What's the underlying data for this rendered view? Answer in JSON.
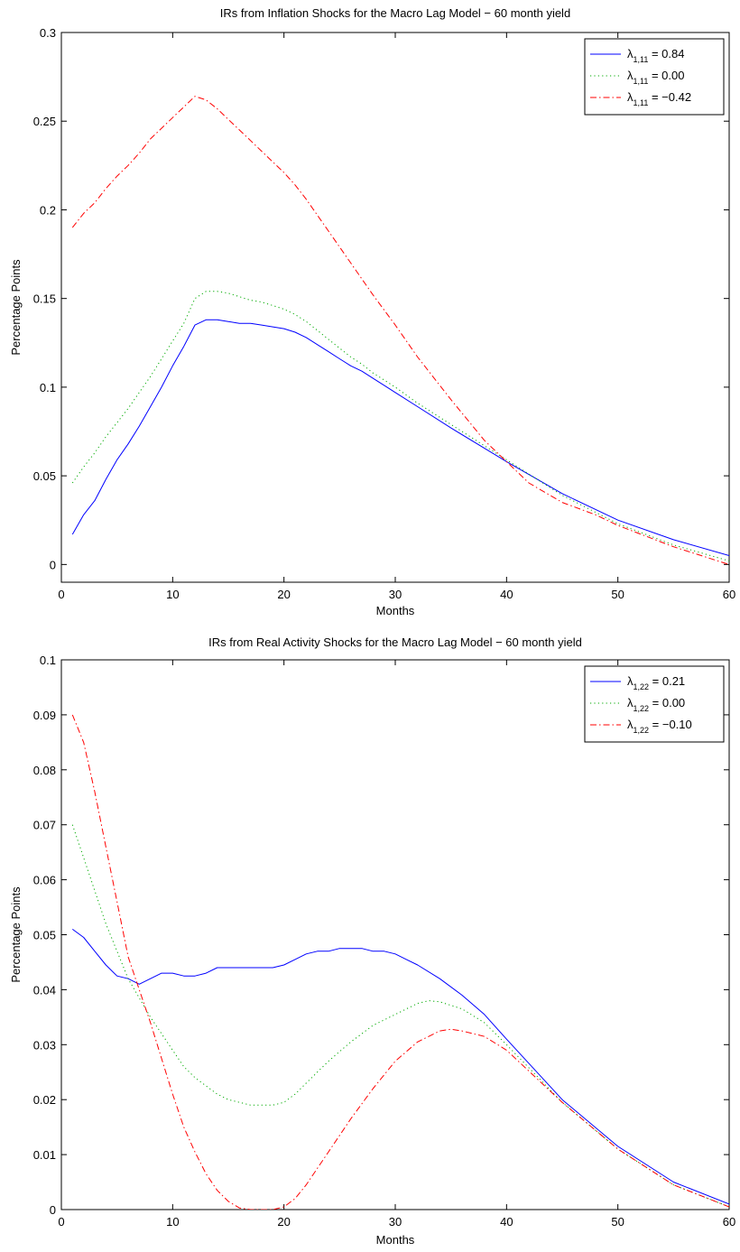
{
  "chart_data": [
    {
      "type": "line",
      "title": "IRs from Inflation Shocks for the Macro Lag Model − 60 month yield",
      "xlabel": "Months",
      "ylabel": "Percentage Points",
      "xlim": [
        0,
        60
      ],
      "ylim": [
        -0.01,
        0.3
      ],
      "xticks": [
        0,
        10,
        20,
        30,
        40,
        50,
        60
      ],
      "xtick_labels": [
        "0",
        "10",
        "20",
        "30",
        "40",
        "50",
        "60"
      ],
      "yticks": [
        0,
        0.05,
        0.1,
        0.15,
        0.2,
        0.25,
        0.3
      ],
      "ytick_labels": [
        "0",
        "0.05",
        "0.1",
        "0.15",
        "0.2",
        "0.25",
        "0.3"
      ],
      "grid": false,
      "legend_position": "top-right",
      "series": [
        {
          "name": "λ1,11 = 0.84",
          "legend": {
            "symbol": "λ",
            "sub": "1,11",
            "rest": " = 0.84"
          },
          "color": "#0000ff",
          "style": "solid",
          "x": [
            1,
            2,
            3,
            4,
            5,
            6,
            7,
            8,
            9,
            10,
            11,
            12,
            13,
            14,
            15,
            16,
            17,
            18,
            19,
            20,
            21,
            22,
            23,
            24,
            25,
            26,
            27,
            28,
            29,
            30,
            32,
            35,
            40,
            45,
            50,
            55,
            60
          ],
          "y": [
            0.017,
            0.028,
            0.036,
            0.048,
            0.059,
            0.068,
            0.078,
            0.089,
            0.1,
            0.112,
            0.123,
            0.135,
            0.138,
            0.138,
            0.137,
            0.136,
            0.136,
            0.135,
            0.134,
            0.133,
            0.131,
            0.128,
            0.124,
            0.12,
            0.116,
            0.112,
            0.109,
            0.105,
            0.101,
            0.097,
            0.089,
            0.077,
            0.058,
            0.04,
            0.025,
            0.014,
            0.005
          ]
        },
        {
          "name": "λ1,11 = 0.00",
          "legend": {
            "symbol": "λ",
            "sub": "1,11",
            "rest": " = 0.00"
          },
          "color": "#00aa00",
          "style": "dotted",
          "x": [
            1,
            2,
            3,
            4,
            5,
            6,
            7,
            8,
            9,
            10,
            11,
            12,
            13,
            14,
            15,
            16,
            17,
            18,
            19,
            20,
            21,
            22,
            23,
            24,
            25,
            26,
            27,
            28,
            29,
            30,
            32,
            35,
            40,
            45,
            50,
            55,
            60
          ],
          "y": [
            0.046,
            0.055,
            0.063,
            0.072,
            0.08,
            0.088,
            0.097,
            0.106,
            0.116,
            0.126,
            0.136,
            0.15,
            0.154,
            0.154,
            0.153,
            0.151,
            0.149,
            0.148,
            0.146,
            0.144,
            0.141,
            0.137,
            0.132,
            0.127,
            0.122,
            0.117,
            0.113,
            0.108,
            0.104,
            0.1,
            0.091,
            0.079,
            0.059,
            0.039,
            0.023,
            0.011,
            0.002
          ]
        },
        {
          "name": "λ1,11 = −0.42",
          "legend": {
            "symbol": "λ",
            "sub": "1,11",
            "rest": " = −0.42"
          },
          "color": "#ff0000",
          "style": "dashdot",
          "x": [
            1,
            2,
            3,
            4,
            5,
            6,
            7,
            8,
            9,
            10,
            11,
            12,
            13,
            14,
            15,
            16,
            17,
            18,
            19,
            20,
            21,
            22,
            24,
            26,
            28,
            30,
            32,
            35,
            38,
            40,
            42,
            45,
            48,
            50,
            55,
            60
          ],
          "y": [
            0.19,
            0.198,
            0.204,
            0.212,
            0.219,
            0.225,
            0.232,
            0.24,
            0.246,
            0.252,
            0.258,
            0.264,
            0.262,
            0.257,
            0.251,
            0.245,
            0.239,
            0.233,
            0.227,
            0.221,
            0.214,
            0.206,
            0.188,
            0.17,
            0.152,
            0.135,
            0.117,
            0.093,
            0.07,
            0.058,
            0.046,
            0.035,
            0.028,
            0.022,
            0.01,
            0.0
          ]
        }
      ]
    },
    {
      "type": "line",
      "title": "IRs from Real Activity Shocks for the Macro Lag Model − 60 month yield",
      "xlabel": "Months",
      "ylabel": "Percentage Points",
      "xlim": [
        0,
        60
      ],
      "ylim": [
        0,
        0.1
      ],
      "xticks": [
        0,
        10,
        20,
        30,
        40,
        50,
        60
      ],
      "xtick_labels": [
        "0",
        "10",
        "20",
        "30",
        "40",
        "50",
        "60"
      ],
      "yticks": [
        0,
        0.01,
        0.02,
        0.03,
        0.04,
        0.05,
        0.06,
        0.07,
        0.08,
        0.09,
        0.1
      ],
      "ytick_labels": [
        "0",
        "0.01",
        "0.02",
        "0.03",
        "0.04",
        "0.05",
        "0.06",
        "0.07",
        "0.08",
        "0.09",
        "0.1"
      ],
      "grid": false,
      "legend_position": "top-right",
      "series": [
        {
          "name": "λ1,22 = 0.21",
          "legend": {
            "symbol": "λ",
            "sub": "1,22",
            "rest": " = 0.21"
          },
          "color": "#0000ff",
          "style": "solid",
          "x": [
            1,
            2,
            3,
            4,
            5,
            6,
            7,
            8,
            9,
            10,
            11,
            12,
            13,
            14,
            15,
            16,
            17,
            18,
            19,
            20,
            21,
            22,
            23,
            24,
            25,
            26,
            27,
            28,
            29,
            30,
            31,
            32,
            34,
            36,
            38,
            40,
            45,
            50,
            55,
            60
          ],
          "y": [
            0.051,
            0.0495,
            0.047,
            0.0445,
            0.0425,
            0.042,
            0.041,
            0.042,
            0.043,
            0.043,
            0.0425,
            0.0425,
            0.043,
            0.044,
            0.044,
            0.044,
            0.044,
            0.044,
            0.044,
            0.0445,
            0.0455,
            0.0465,
            0.047,
            0.047,
            0.0475,
            0.0475,
            0.0475,
            0.047,
            0.047,
            0.0465,
            0.0455,
            0.0445,
            0.042,
            0.039,
            0.0355,
            0.031,
            0.02,
            0.0115,
            0.005,
            0.001
          ]
        },
        {
          "name": "λ1,22 = 0.00",
          "legend": {
            "symbol": "λ",
            "sub": "1,22",
            "rest": " = 0.00"
          },
          "color": "#00aa00",
          "style": "dotted",
          "x": [
            1,
            2,
            3,
            4,
            5,
            6,
            7,
            8,
            9,
            10,
            11,
            12,
            13,
            14,
            15,
            16,
            17,
            18,
            19,
            20,
            21,
            22,
            24,
            26,
            28,
            30,
            32,
            33,
            34,
            36,
            38,
            40,
            45,
            50,
            55,
            60
          ],
          "y": [
            0.07,
            0.064,
            0.058,
            0.052,
            0.047,
            0.042,
            0.0385,
            0.035,
            0.032,
            0.029,
            0.026,
            0.024,
            0.0225,
            0.021,
            0.02,
            0.0195,
            0.019,
            0.019,
            0.019,
            0.0195,
            0.021,
            0.023,
            0.027,
            0.0305,
            0.0335,
            0.0355,
            0.0375,
            0.038,
            0.0378,
            0.0365,
            0.034,
            0.03,
            0.0195,
            0.011,
            0.0045,
            0.0005
          ]
        },
        {
          "name": "λ1,22 = −0.10",
          "legend": {
            "symbol": "λ",
            "sub": "1,22",
            "rest": " = −0.10"
          },
          "color": "#ff0000",
          "style": "dashdot",
          "x": [
            1,
            2,
            3,
            4,
            5,
            6,
            7,
            8,
            9,
            10,
            11,
            12,
            13,
            14,
            15,
            16,
            17,
            18,
            19,
            20,
            21,
            22,
            24,
            26,
            28,
            30,
            32,
            34,
            35,
            36,
            38,
            40,
            45,
            50,
            55,
            60
          ],
          "y": [
            0.09,
            0.085,
            0.076,
            0.066,
            0.056,
            0.046,
            0.04,
            0.034,
            0.0275,
            0.021,
            0.015,
            0.0105,
            0.0065,
            0.0035,
            0.0015,
            0.0003,
            0.0,
            0.0,
            0.0,
            0.0005,
            0.002,
            0.0045,
            0.0105,
            0.0165,
            0.022,
            0.027,
            0.0305,
            0.0325,
            0.0328,
            0.0325,
            0.0315,
            0.029,
            0.0195,
            0.011,
            0.0045,
            0.0005
          ]
        }
      ]
    }
  ]
}
